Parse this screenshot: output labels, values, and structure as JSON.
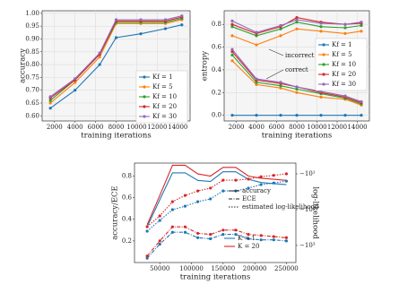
{
  "chart_data": [
    {
      "type": "line",
      "xlabel": "training iterations",
      "ylabel": "accuracy",
      "x": [
        1600,
        4000,
        6400,
        8000,
        10400,
        12800,
        14400
      ],
      "xlim": [
        800,
        15200
      ],
      "xticks": [
        2000,
        4000,
        6000,
        8000,
        10000,
        12000,
        14000
      ],
      "ylim": [
        0.58,
        1.01
      ],
      "yticks": [
        {
          "value": 0.6,
          "label": "0.60"
        },
        0.65,
        {
          "value": 0.7,
          "label": "0.70"
        },
        0.75,
        {
          "value": 0.8,
          "label": "0.80"
        },
        0.85,
        {
          "value": 0.9,
          "label": "0.90"
        },
        0.95,
        {
          "value": 1.0,
          "label": "1.00"
        }
      ],
      "grid": true,
      "legend": "lower right",
      "series": [
        {
          "name": "Kf = 1",
          "color": "#1f77b4",
          "values": [
            0.63,
            0.7,
            0.8,
            0.905,
            0.92,
            0.94,
            0.955
          ]
        },
        {
          "name": "Kf = 5",
          "color": "#ff7f0e",
          "values": [
            0.65,
            0.73,
            0.83,
            0.96,
            0.96,
            0.96,
            0.975
          ]
        },
        {
          "name": "Kf = 10",
          "color": "#2ca02c",
          "values": [
            0.66,
            0.74,
            0.84,
            0.965,
            0.965,
            0.965,
            0.98
          ]
        },
        {
          "name": "Kf = 20",
          "color": "#d62728",
          "values": [
            0.67,
            0.74,
            0.84,
            0.97,
            0.97,
            0.97,
            0.985
          ]
        },
        {
          "name": "Kf = 30",
          "color": "#9467bd",
          "values": [
            0.675,
            0.745,
            0.845,
            0.975,
            0.975,
            0.975,
            0.99
          ]
        }
      ]
    },
    {
      "type": "line",
      "xlabel": "training iterations",
      "ylabel": "entropy",
      "x": [
        1600,
        4000,
        6400,
        8000,
        10400,
        12800,
        14400
      ],
      "xlim": [
        800,
        15200
      ],
      "xticks": [
        2000,
        4000,
        6000,
        8000,
        10000,
        12000,
        14000
      ],
      "ylim": [
        -0.05,
        0.92
      ],
      "yticks": [
        {
          "value": 0,
          "label": "0.0"
        },
        0.2,
        0.4,
        0.6,
        0.8
      ],
      "grid": true,
      "legend": "right",
      "annotations": [
        "incorrect",
        "correct"
      ],
      "series": [
        {
          "name": "Kf = 1",
          "color": "#1f77b4",
          "values": [
            0,
            0,
            0,
            0,
            0,
            0,
            0
          ]
        },
        {
          "name": "Kf = 5",
          "color": "#ff7f0e",
          "values": [
            0.7,
            0.62,
            0.7,
            0.76,
            0.74,
            0.72,
            0.74
          ],
          "correct_values": [
            0.48,
            0.27,
            0.24,
            0.2,
            0.16,
            0.14,
            0.09
          ]
        },
        {
          "name": "Kf = 10",
          "color": "#2ca02c",
          "values": [
            0.78,
            0.7,
            0.76,
            0.82,
            0.78,
            0.77,
            0.79
          ],
          "correct_values": [
            0.53,
            0.29,
            0.26,
            0.23,
            0.19,
            0.15,
            0.1
          ]
        },
        {
          "name": "Kf = 20",
          "color": "#d62728",
          "values": [
            0.8,
            0.72,
            0.78,
            0.86,
            0.82,
            0.8,
            0.81
          ],
          "correct_values": [
            0.56,
            0.31,
            0.28,
            0.25,
            0.2,
            0.16,
            0.11
          ]
        },
        {
          "name": "Kf = 30",
          "color": "#9467bd",
          "values": [
            0.83,
            0.73,
            0.79,
            0.84,
            0.81,
            0.8,
            0.82
          ],
          "correct_values": [
            0.58,
            0.32,
            0.29,
            0.25,
            0.21,
            0.17,
            0.12
          ]
        }
      ]
    },
    {
      "type": "multi-line",
      "xlabel": "training iterations",
      "ylabel": "accuracy/ECE",
      "y2label": "log-likelihood",
      "x": [
        30000,
        50000,
        70000,
        90000,
        110000,
        130000,
        150000,
        170000,
        190000,
        210000,
        230000,
        250000
      ],
      "xlim": [
        10000,
        265000
      ],
      "xticks": [
        50000,
        100000,
        150000,
        200000,
        250000
      ],
      "ylim": [
        0,
        0.92
      ],
      "yticks": [
        0.2,
        0.4,
        0.6,
        0.8
      ],
      "y2lim": [
        -3000,
        -5
      ],
      "y2scale": "log",
      "y2ticks": [
        {
          "value": -10,
          "label": "−10¹"
        },
        {
          "value": -100,
          "label": "−10²"
        },
        {
          "value": -1000,
          "label": "−10³"
        }
      ],
      "grid": false,
      "metrics": [
        "accuracy",
        "ECE",
        "estimated log-likelihood"
      ],
      "series": [
        {
          "name": "K = 1",
          "color": "#1f77b4",
          "accuracy": [
            0.33,
            0.58,
            0.83,
            0.83,
            0.76,
            0.75,
            0.84,
            0.84,
            0.77,
            0.74,
            0.73,
            0.72
          ],
          "ece": [
            0.04,
            0.17,
            0.28,
            0.28,
            0.23,
            0.22,
            0.26,
            0.26,
            0.22,
            0.21,
            0.21,
            0.2
          ],
          "loglik": [
            -400,
            -200,
            -100,
            -80,
            -60,
            -50,
            -30,
            -30,
            -25,
            -20,
            -18,
            -16
          ]
        },
        {
          "name": "K = 20",
          "color": "#d62728",
          "accuracy": [
            0.35,
            0.62,
            0.9,
            0.9,
            0.82,
            0.8,
            0.88,
            0.88,
            0.8,
            0.78,
            0.77,
            0.76
          ],
          "ece": [
            0.06,
            0.2,
            0.33,
            0.33,
            0.27,
            0.26,
            0.3,
            0.3,
            0.26,
            0.25,
            0.24,
            0.23
          ],
          "loglik": [
            -300,
            -150,
            -60,
            -40,
            -30,
            -25,
            -15,
            -15,
            -14,
            -12,
            -11,
            -10
          ]
        }
      ]
    }
  ]
}
